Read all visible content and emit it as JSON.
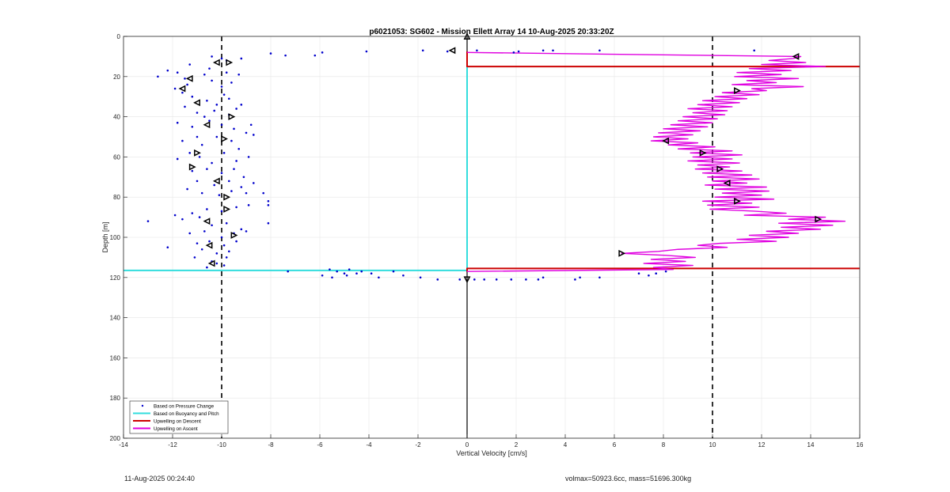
{
  "chart_data": {
    "type": "scatter",
    "title": "p6021053: SG602 - Mission Ellett Array 14 10-Aug-2025 20:33:20Z",
    "xlabel": "Vertical Velocity [cm/s]",
    "ylabel": "Depth [m]",
    "xlim": [
      -14,
      16
    ],
    "ylim": [
      0,
      200
    ],
    "y_reversed": true,
    "grid": true,
    "xticks": [
      "-14",
      "-12",
      "-10",
      "-8",
      "-6",
      "-4",
      "-2",
      "0",
      "2",
      "4",
      "6",
      "8",
      "10",
      "12",
      "14",
      "16"
    ],
    "yticks": [
      "0",
      "20",
      "40",
      "60",
      "80",
      "100",
      "120",
      "140",
      "160",
      "180",
      "200"
    ],
    "legend_position": "bottom-left",
    "legend": [
      "Based on Pressure Change",
      "Based on Buoyancy and Pitch",
      "Upwelling on Descent",
      "Upwelling on Ascent"
    ],
    "colors": {
      "pressure": "#0000cc",
      "buoyancy": "#33dddd",
      "descent": "#cc0000",
      "ascent": "#e000e0",
      "reference": "#000000",
      "grid": "#e6e6e6"
    },
    "reference_lines": {
      "dashed_x": [
        -10,
        10
      ],
      "solid_x": 0
    },
    "series": [
      {
        "name": "Based on Pressure Change",
        "style": "dots",
        "points": [
          [
            -10.4,
            10
          ],
          [
            -10.0,
            11
          ],
          [
            -9.8,
            12
          ],
          [
            -9.2,
            11
          ],
          [
            -8.0,
            8.5
          ],
          [
            -7.4,
            9.5
          ],
          [
            -6.2,
            9.5
          ],
          [
            -5.9,
            8
          ],
          [
            -4.1,
            7.5
          ],
          [
            -1.8,
            7
          ],
          [
            -0.8,
            7.5
          ],
          [
            0.4,
            7
          ],
          [
            1.9,
            8
          ],
          [
            2.1,
            7.5
          ],
          [
            3.1,
            7
          ],
          [
            3.5,
            7
          ],
          [
            5.4,
            7
          ],
          [
            11.7,
            7
          ],
          [
            -11.3,
            14
          ],
          [
            -10.5,
            16
          ],
          [
            -10.7,
            19
          ],
          [
            -11.5,
            21
          ],
          [
            -11.8,
            18
          ],
          [
            -12.2,
            17
          ],
          [
            -12.6,
            20
          ],
          [
            -11.4,
            24
          ],
          [
            -11.9,
            26
          ],
          [
            -10.4,
            22
          ],
          [
            -10.0,
            25
          ],
          [
            -9.6,
            23
          ],
          [
            -9.3,
            19
          ],
          [
            -9.8,
            18
          ],
          [
            -11.6,
            28
          ],
          [
            -11.2,
            30
          ],
          [
            -10.6,
            32
          ],
          [
            -10.2,
            34
          ],
          [
            -9.7,
            31
          ],
          [
            -9.9,
            29
          ],
          [
            -11.5,
            35
          ],
          [
            -11.0,
            38
          ],
          [
            -10.7,
            40
          ],
          [
            -10.3,
            37
          ],
          [
            -9.4,
            36
          ],
          [
            -9.2,
            34
          ],
          [
            -9.7,
            39
          ],
          [
            -11.8,
            43
          ],
          [
            -11.2,
            45
          ],
          [
            -10.5,
            42
          ],
          [
            -10.0,
            44
          ],
          [
            -9.5,
            46
          ],
          [
            -9.0,
            48
          ],
          [
            -8.8,
            44
          ],
          [
            -11.0,
            50
          ],
          [
            -11.6,
            52
          ],
          [
            -10.8,
            54
          ],
          [
            -10.2,
            50
          ],
          [
            -9.6,
            52
          ],
          [
            -9.3,
            56
          ],
          [
            -8.7,
            49
          ],
          [
            -11.3,
            58
          ],
          [
            -10.9,
            60
          ],
          [
            -11.8,
            61
          ],
          [
            -10.4,
            63
          ],
          [
            -9.9,
            58
          ],
          [
            -9.4,
            62
          ],
          [
            -8.9,
            60
          ],
          [
            -10.6,
            66
          ],
          [
            -11.2,
            67
          ],
          [
            -10.0,
            68
          ],
          [
            -9.5,
            66
          ],
          [
            -9.1,
            70
          ],
          [
            -11.0,
            72
          ],
          [
            -10.3,
            74
          ],
          [
            -9.7,
            72
          ],
          [
            -9.2,
            75
          ],
          [
            -8.7,
            73
          ],
          [
            -11.4,
            76
          ],
          [
            -10.8,
            78
          ],
          [
            -10.1,
            79
          ],
          [
            -9.6,
            77
          ],
          [
            -9.0,
            78
          ],
          [
            -8.3,
            78
          ],
          [
            -8.1,
            82
          ],
          [
            -8.1,
            84
          ],
          [
            -11.9,
            89
          ],
          [
            -11.2,
            88
          ],
          [
            -10.6,
            86
          ],
          [
            -10.0,
            87
          ],
          [
            -9.4,
            85
          ],
          [
            -8.9,
            84
          ],
          [
            -13.0,
            92
          ],
          [
            -11.6,
            91
          ],
          [
            -10.9,
            90
          ],
          [
            -10.4,
            94
          ],
          [
            -9.8,
            93
          ],
          [
            -9.2,
            96
          ],
          [
            -8.1,
            93
          ],
          [
            -11.3,
            98
          ],
          [
            -10.7,
            97
          ],
          [
            -10.0,
            100
          ],
          [
            -9.5,
            98
          ],
          [
            -9.0,
            97
          ],
          [
            -12.2,
            105
          ],
          [
            -11.0,
            103
          ],
          [
            -10.5,
            102
          ],
          [
            -9.9,
            104
          ],
          [
            -9.4,
            102
          ],
          [
            -10.8,
            106
          ],
          [
            -10.2,
            108
          ],
          [
            -9.7,
            107
          ],
          [
            -11.1,
            110
          ],
          [
            -10.4,
            112
          ],
          [
            -9.8,
            110
          ],
          [
            -10.6,
            115
          ],
          [
            -10.2,
            113
          ],
          [
            -9.9,
            114
          ],
          [
            -7.3,
            117
          ],
          [
            -5.6,
            116
          ],
          [
            -5.3,
            117
          ],
          [
            -5.0,
            118
          ],
          [
            -4.8,
            116
          ],
          [
            -4.3,
            117
          ],
          [
            -3.9,
            118
          ],
          [
            -3.0,
            117
          ],
          [
            -5.9,
            119
          ],
          [
            -5.5,
            120
          ],
          [
            -4.9,
            119
          ],
          [
            -4.5,
            118
          ],
          [
            -3.6,
            120
          ],
          [
            -2.6,
            119
          ],
          [
            -1.9,
            120
          ],
          [
            -1.2,
            121
          ],
          [
            -0.3,
            121
          ],
          [
            0.3,
            121
          ],
          [
            0.7,
            121
          ],
          [
            1.2,
            121
          ],
          [
            1.8,
            121
          ],
          [
            2.4,
            121
          ],
          [
            2.9,
            121
          ],
          [
            3.1,
            120
          ],
          [
            4.4,
            121
          ],
          [
            4.6,
            120
          ],
          [
            5.4,
            120
          ],
          [
            7.0,
            118
          ],
          [
            7.4,
            119
          ],
          [
            7.7,
            118
          ],
          [
            8.1,
            117
          ]
        ]
      },
      {
        "name": "Based on Buoyancy and Pitch",
        "style": "line",
        "points": [
          [
            0,
            7.5
          ],
          [
            0,
            116.5
          ],
          [
            -14,
            116.5
          ]
        ]
      },
      {
        "name": "Upwelling on Descent",
        "style": "line",
        "points": [
          [
            0,
            7.5
          ],
          [
            0,
            15
          ],
          [
            16,
            15
          ]
        ]
      },
      {
        "name": "Upwelling on Descent",
        "style": "line",
        "points": [
          [
            0,
            117
          ],
          [
            0,
            115.5
          ],
          [
            16,
            115.5
          ]
        ]
      },
      {
        "name": "Upwelling on Ascent",
        "style": "line",
        "points": [
          [
            0,
            8
          ],
          [
            13.6,
            10
          ],
          [
            13.3,
            11
          ],
          [
            12.3,
            12
          ],
          [
            13.8,
            13
          ],
          [
            12.0,
            14
          ],
          [
            14.6,
            15
          ],
          [
            11.5,
            16
          ],
          [
            13.2,
            17
          ],
          [
            11.0,
            18
          ],
          [
            12.8,
            19
          ],
          [
            10.9,
            20
          ],
          [
            13.5,
            21
          ],
          [
            11.4,
            22
          ],
          [
            12.6,
            23
          ],
          [
            10.8,
            24
          ],
          [
            13.7,
            25
          ],
          [
            11.6,
            26
          ],
          [
            12.2,
            27
          ],
          [
            10.4,
            28
          ],
          [
            11.9,
            29
          ],
          [
            10.1,
            30
          ],
          [
            11.4,
            31
          ],
          [
            9.6,
            32
          ],
          [
            11.1,
            33
          ],
          [
            9.4,
            34
          ],
          [
            10.8,
            35
          ],
          [
            9.0,
            36
          ],
          [
            10.6,
            37
          ],
          [
            9.2,
            38
          ],
          [
            10.5,
            39
          ],
          [
            8.8,
            40
          ],
          [
            10.2,
            41
          ],
          [
            8.6,
            42
          ],
          [
            10.0,
            43
          ],
          [
            8.3,
            44
          ],
          [
            9.8,
            45
          ],
          [
            8.0,
            46
          ],
          [
            9.5,
            47
          ],
          [
            7.8,
            48
          ],
          [
            9.2,
            49
          ],
          [
            7.6,
            50
          ],
          [
            9.0,
            51
          ],
          [
            7.5,
            52
          ],
          [
            9.4,
            53
          ],
          [
            8.2,
            54
          ],
          [
            10.1,
            55
          ],
          [
            8.6,
            56
          ],
          [
            10.8,
            57
          ],
          [
            9.1,
            58
          ],
          [
            11.2,
            59
          ],
          [
            9.2,
            60
          ],
          [
            10.8,
            61
          ],
          [
            9.0,
            62
          ],
          [
            11.1,
            63
          ],
          [
            9.4,
            64
          ],
          [
            10.7,
            65
          ],
          [
            9.3,
            66
          ],
          [
            11.2,
            67
          ],
          [
            9.6,
            68
          ],
          [
            11.6,
            69
          ],
          [
            9.8,
            70
          ],
          [
            11.9,
            71
          ],
          [
            10.0,
            72
          ],
          [
            11.4,
            73
          ],
          [
            9.7,
            74
          ],
          [
            12.2,
            75
          ],
          [
            10.1,
            76
          ],
          [
            12.3,
            77
          ],
          [
            10.4,
            78
          ],
          [
            12.0,
            79
          ],
          [
            10.1,
            80
          ],
          [
            12.5,
            81
          ],
          [
            9.6,
            82
          ],
          [
            11.6,
            83
          ],
          [
            9.8,
            84
          ],
          [
            11.9,
            85
          ],
          [
            9.9,
            86
          ],
          [
            11.7,
            87
          ],
          [
            13.0,
            88
          ],
          [
            11.3,
            89
          ],
          [
            14.6,
            90
          ],
          [
            13.1,
            91
          ],
          [
            15.4,
            92
          ],
          [
            12.7,
            93
          ],
          [
            14.9,
            94
          ],
          [
            12.8,
            95
          ],
          [
            14.4,
            96
          ],
          [
            12.2,
            97
          ],
          [
            13.5,
            98
          ],
          [
            11.5,
            99
          ],
          [
            13.1,
            100
          ],
          [
            11.0,
            101
          ],
          [
            12.6,
            102
          ],
          [
            10.3,
            103
          ],
          [
            9.4,
            104
          ],
          [
            10.6,
            105
          ],
          [
            8.6,
            106
          ],
          [
            7.8,
            107
          ],
          [
            6.3,
            108
          ],
          [
            8.1,
            109
          ],
          [
            9.3,
            110
          ],
          [
            7.5,
            111
          ],
          [
            8.9,
            112
          ],
          [
            7.2,
            113
          ],
          [
            9.2,
            114
          ],
          [
            7.6,
            115
          ],
          [
            8.4,
            116
          ],
          [
            0,
            117
          ]
        ]
      }
    ],
    "markers": {
      "style": "triangles",
      "left": [
        [
          -0.6,
          7
        ],
        [
          -10.2,
          13
        ],
        [
          -11.3,
          21
        ],
        [
          -11.6,
          26
        ],
        [
          -11.0,
          33
        ],
        [
          -10.6,
          44
        ],
        [
          -10.2,
          72
        ],
        [
          -10.6,
          92
        ],
        [
          -10.5,
          104
        ],
        [
          -10.4,
          113
        ],
        [
          13.4,
          10
        ],
        [
          8.1,
          52
        ],
        [
          10.6,
          73
        ]
      ],
      "right": [
        [
          -9.7,
          13
        ],
        [
          -9.6,
          40
        ],
        [
          -9.9,
          51
        ],
        [
          -11.0,
          58
        ],
        [
          -11.2,
          65
        ],
        [
          -9.8,
          80
        ],
        [
          -9.8,
          86
        ],
        [
          -9.5,
          99
        ],
        [
          11.0,
          27
        ],
        [
          9.6,
          58
        ],
        [
          10.3,
          66
        ],
        [
          11.0,
          82
        ],
        [
          14.3,
          91
        ],
        [
          6.3,
          108
        ]
      ],
      "up": [
        [
          0,
          0
        ]
      ],
      "down": [
        [
          0,
          121
        ]
      ]
    }
  },
  "footer": {
    "timestamp": "11-Aug-2025 00:24:40",
    "info": "volmax=50923.6cc, mass=51696.300kg"
  }
}
